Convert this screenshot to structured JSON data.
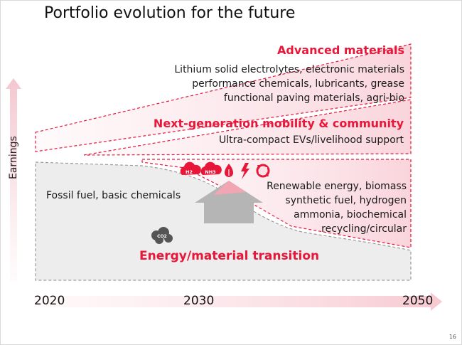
{
  "title": "Portfolio evolution for the future",
  "y_axis_label": "Earnings",
  "timeline": {
    "start": "2020",
    "mid": "2030",
    "end": "2050"
  },
  "segments": {
    "advanced": {
      "heading": "Advanced materials",
      "lines": [
        "Lithium solid electrolytes, electronic materials",
        "performance chemicals, lubricants, grease",
        "functional paving materials, agri-bio"
      ]
    },
    "mobility": {
      "heading": "Next-generation mobility & community",
      "lines": [
        "Ultra-compact EVs/livelihood support"
      ]
    },
    "fossil": {
      "label": "Fossil fuel, basic chemicals"
    },
    "transition": {
      "heading": "Energy/material transition",
      "lines": [
        "Renewable energy, biomass",
        "synthetic fuel, hydrogen",
        "ammonia, biochemical",
        "recycling/circular"
      ]
    }
  },
  "icons": [
    {
      "name": "h2-cloud-icon",
      "label": "H2"
    },
    {
      "name": "nh3-cloud-icon",
      "label": "NH3"
    },
    {
      "name": "leaf-drop-icon",
      "label": ""
    },
    {
      "name": "lightning-icon",
      "label": ""
    },
    {
      "name": "recycle-icon",
      "label": ""
    }
  ],
  "co2_label": "CO2",
  "page_number": "16",
  "colors": {
    "accent": "#e8173a",
    "pink_fill": "#fbe1e6",
    "grey_fill": "#ededed",
    "grey_arrow": "#b5b5b5"
  }
}
